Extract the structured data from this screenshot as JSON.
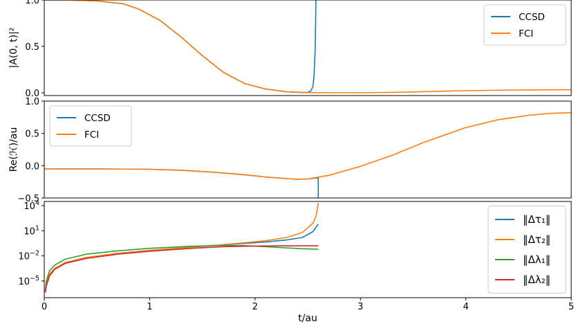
{
  "figure": {
    "xlabel": "t/au"
  },
  "chart_data": [
    {
      "type": "line",
      "ylabel": "|A(0, t)|²",
      "xlim": [
        0,
        5
      ],
      "ylim": [
        -0.03,
        1.0
      ],
      "yticks": [
        0.0,
        0.5,
        1.0
      ],
      "ytick_labels": [
        "0.0",
        "0.5",
        "1.0"
      ],
      "legend": "top-right",
      "series": [
        {
          "name": "CCSD",
          "color": "#1f77b4",
          "x": [
            0,
            0.2,
            0.5,
            0.75,
            0.9,
            1.1,
            1.3,
            1.5,
            1.7,
            1.9,
            2.1,
            2.3,
            2.45,
            2.5,
            2.53,
            2.55,
            2.56,
            2.57,
            2.575,
            2.58
          ],
          "y": [
            1.0,
            1.0,
            0.99,
            0.96,
            0.9,
            0.78,
            0.6,
            0.4,
            0.22,
            0.1,
            0.04,
            0.01,
            0.002,
            0.004,
            0.02,
            0.07,
            0.18,
            0.45,
            0.75,
            1.2
          ]
        },
        {
          "name": "FCI",
          "color": "#ff7f0e",
          "x": [
            0,
            0.2,
            0.5,
            0.75,
            0.9,
            1.1,
            1.3,
            1.5,
            1.7,
            1.9,
            2.1,
            2.3,
            2.5,
            2.7,
            3.0,
            3.3,
            3.6,
            3.9,
            4.2,
            4.5,
            4.8,
            5.0
          ],
          "y": [
            1.0,
            1.0,
            0.99,
            0.96,
            0.9,
            0.78,
            0.6,
            0.4,
            0.22,
            0.1,
            0.04,
            0.01,
            0.002,
            0.0,
            0.0,
            0.004,
            0.012,
            0.02,
            0.026,
            0.03,
            0.032,
            0.033
          ]
        }
      ]
    },
    {
      "type": "line",
      "ylabel": "Re(ℋ)/au",
      "xlim": [
        0,
        5
      ],
      "ylim": [
        -0.5,
        1.0
      ],
      "yticks": [
        -0.5,
        0.0,
        0.5,
        1.0
      ],
      "ytick_labels": [
        "−0.5",
        "0.0",
        "0.5",
        "1.0"
      ],
      "legend": "top-left",
      "series": [
        {
          "name": "CCSD",
          "color": "#1f77b4",
          "x": [
            0,
            0.5,
            1.0,
            1.3,
            1.6,
            1.9,
            2.1,
            2.3,
            2.4,
            2.5,
            2.58,
            2.6,
            2.6
          ],
          "y": [
            -0.05,
            -0.05,
            -0.055,
            -0.07,
            -0.1,
            -0.14,
            -0.175,
            -0.2,
            -0.21,
            -0.205,
            -0.19,
            -0.19,
            -0.5
          ]
        },
        {
          "name": "FCI",
          "color": "#ff7f0e",
          "x": [
            0,
            0.5,
            1.0,
            1.3,
            1.6,
            1.9,
            2.1,
            2.3,
            2.4,
            2.5,
            2.7,
            3.0,
            3.3,
            3.6,
            4.0,
            4.3,
            4.6,
            4.8,
            5.0
          ],
          "y": [
            -0.05,
            -0.05,
            -0.055,
            -0.07,
            -0.1,
            -0.14,
            -0.175,
            -0.2,
            -0.21,
            -0.205,
            -0.15,
            -0.01,
            0.16,
            0.36,
            0.59,
            0.71,
            0.78,
            0.81,
            0.82
          ]
        }
      ]
    },
    {
      "type": "line",
      "yscale": "log",
      "xlim": [
        0,
        5
      ],
      "ylim_log10": [
        -7,
        4.5
      ],
      "yticks_log10": [
        -5,
        -2,
        1,
        4
      ],
      "ytick_labels": [
        {
          "base": "10",
          "exp": "−5"
        },
        {
          "base": "10",
          "exp": "−2"
        },
        {
          "base": "10",
          "exp": "1"
        },
        {
          "base": "10",
          "exp": "4"
        }
      ],
      "xticks": [
        0,
        1,
        2,
        3,
        4,
        5
      ],
      "xtick_labels": [
        "0",
        "1",
        "2",
        "3",
        "4",
        "5"
      ],
      "legend": "right",
      "series": [
        {
          "name": "‖Δτ₁‖",
          "color": "#1f77b4",
          "x": [
            0.01,
            0.02,
            0.05,
            0.1,
            0.2,
            0.4,
            0.7,
            1.0,
            1.4,
            1.8,
            2.1,
            2.3,
            2.45,
            2.55,
            2.6
          ],
          "log10_y": [
            -6.2,
            -5.4,
            -4.2,
            -3.5,
            -2.8,
            -2.2,
            -1.7,
            -1.35,
            -0.95,
            -0.6,
            -0.35,
            -0.1,
            0.2,
            0.9,
            1.8
          ]
        },
        {
          "name": "‖Δτ₂‖",
          "color": "#ff7f0e",
          "x": [
            0.01,
            0.02,
            0.05,
            0.1,
            0.2,
            0.4,
            0.7,
            1.0,
            1.4,
            1.8,
            2.1,
            2.3,
            2.45,
            2.55,
            2.58,
            2.6
          ],
          "log10_y": [
            -6.2,
            -5.4,
            -4.2,
            -3.5,
            -2.8,
            -2.2,
            -1.7,
            -1.35,
            -0.95,
            -0.55,
            -0.2,
            0.2,
            0.8,
            1.9,
            2.8,
            4.3
          ]
        },
        {
          "name": "‖Δλ₁‖",
          "color": "#2ca02c",
          "x": [
            0.01,
            0.02,
            0.05,
            0.1,
            0.2,
            0.4,
            0.7,
            1.0,
            1.4,
            1.7,
            1.9,
            2.1,
            2.3,
            2.45,
            2.6
          ],
          "log10_y": [
            -6.2,
            -5.0,
            -3.8,
            -3.1,
            -2.4,
            -1.8,
            -1.4,
            -1.1,
            -0.85,
            -0.75,
            -0.78,
            -0.9,
            -1.05,
            -1.15,
            -1.2
          ]
        },
        {
          "name": "‖Δλ₂‖",
          "color": "#d62728",
          "x": [
            0.01,
            0.02,
            0.05,
            0.1,
            0.2,
            0.4,
            0.7,
            1.0,
            1.4,
            1.7,
            1.9,
            2.1,
            2.3,
            2.45,
            2.6
          ],
          "log10_y": [
            -6.4,
            -5.6,
            -4.4,
            -3.6,
            -2.9,
            -2.3,
            -1.8,
            -1.45,
            -1.1,
            -0.9,
            -0.85,
            -0.82,
            -0.8,
            -0.8,
            -0.8
          ]
        }
      ]
    }
  ]
}
